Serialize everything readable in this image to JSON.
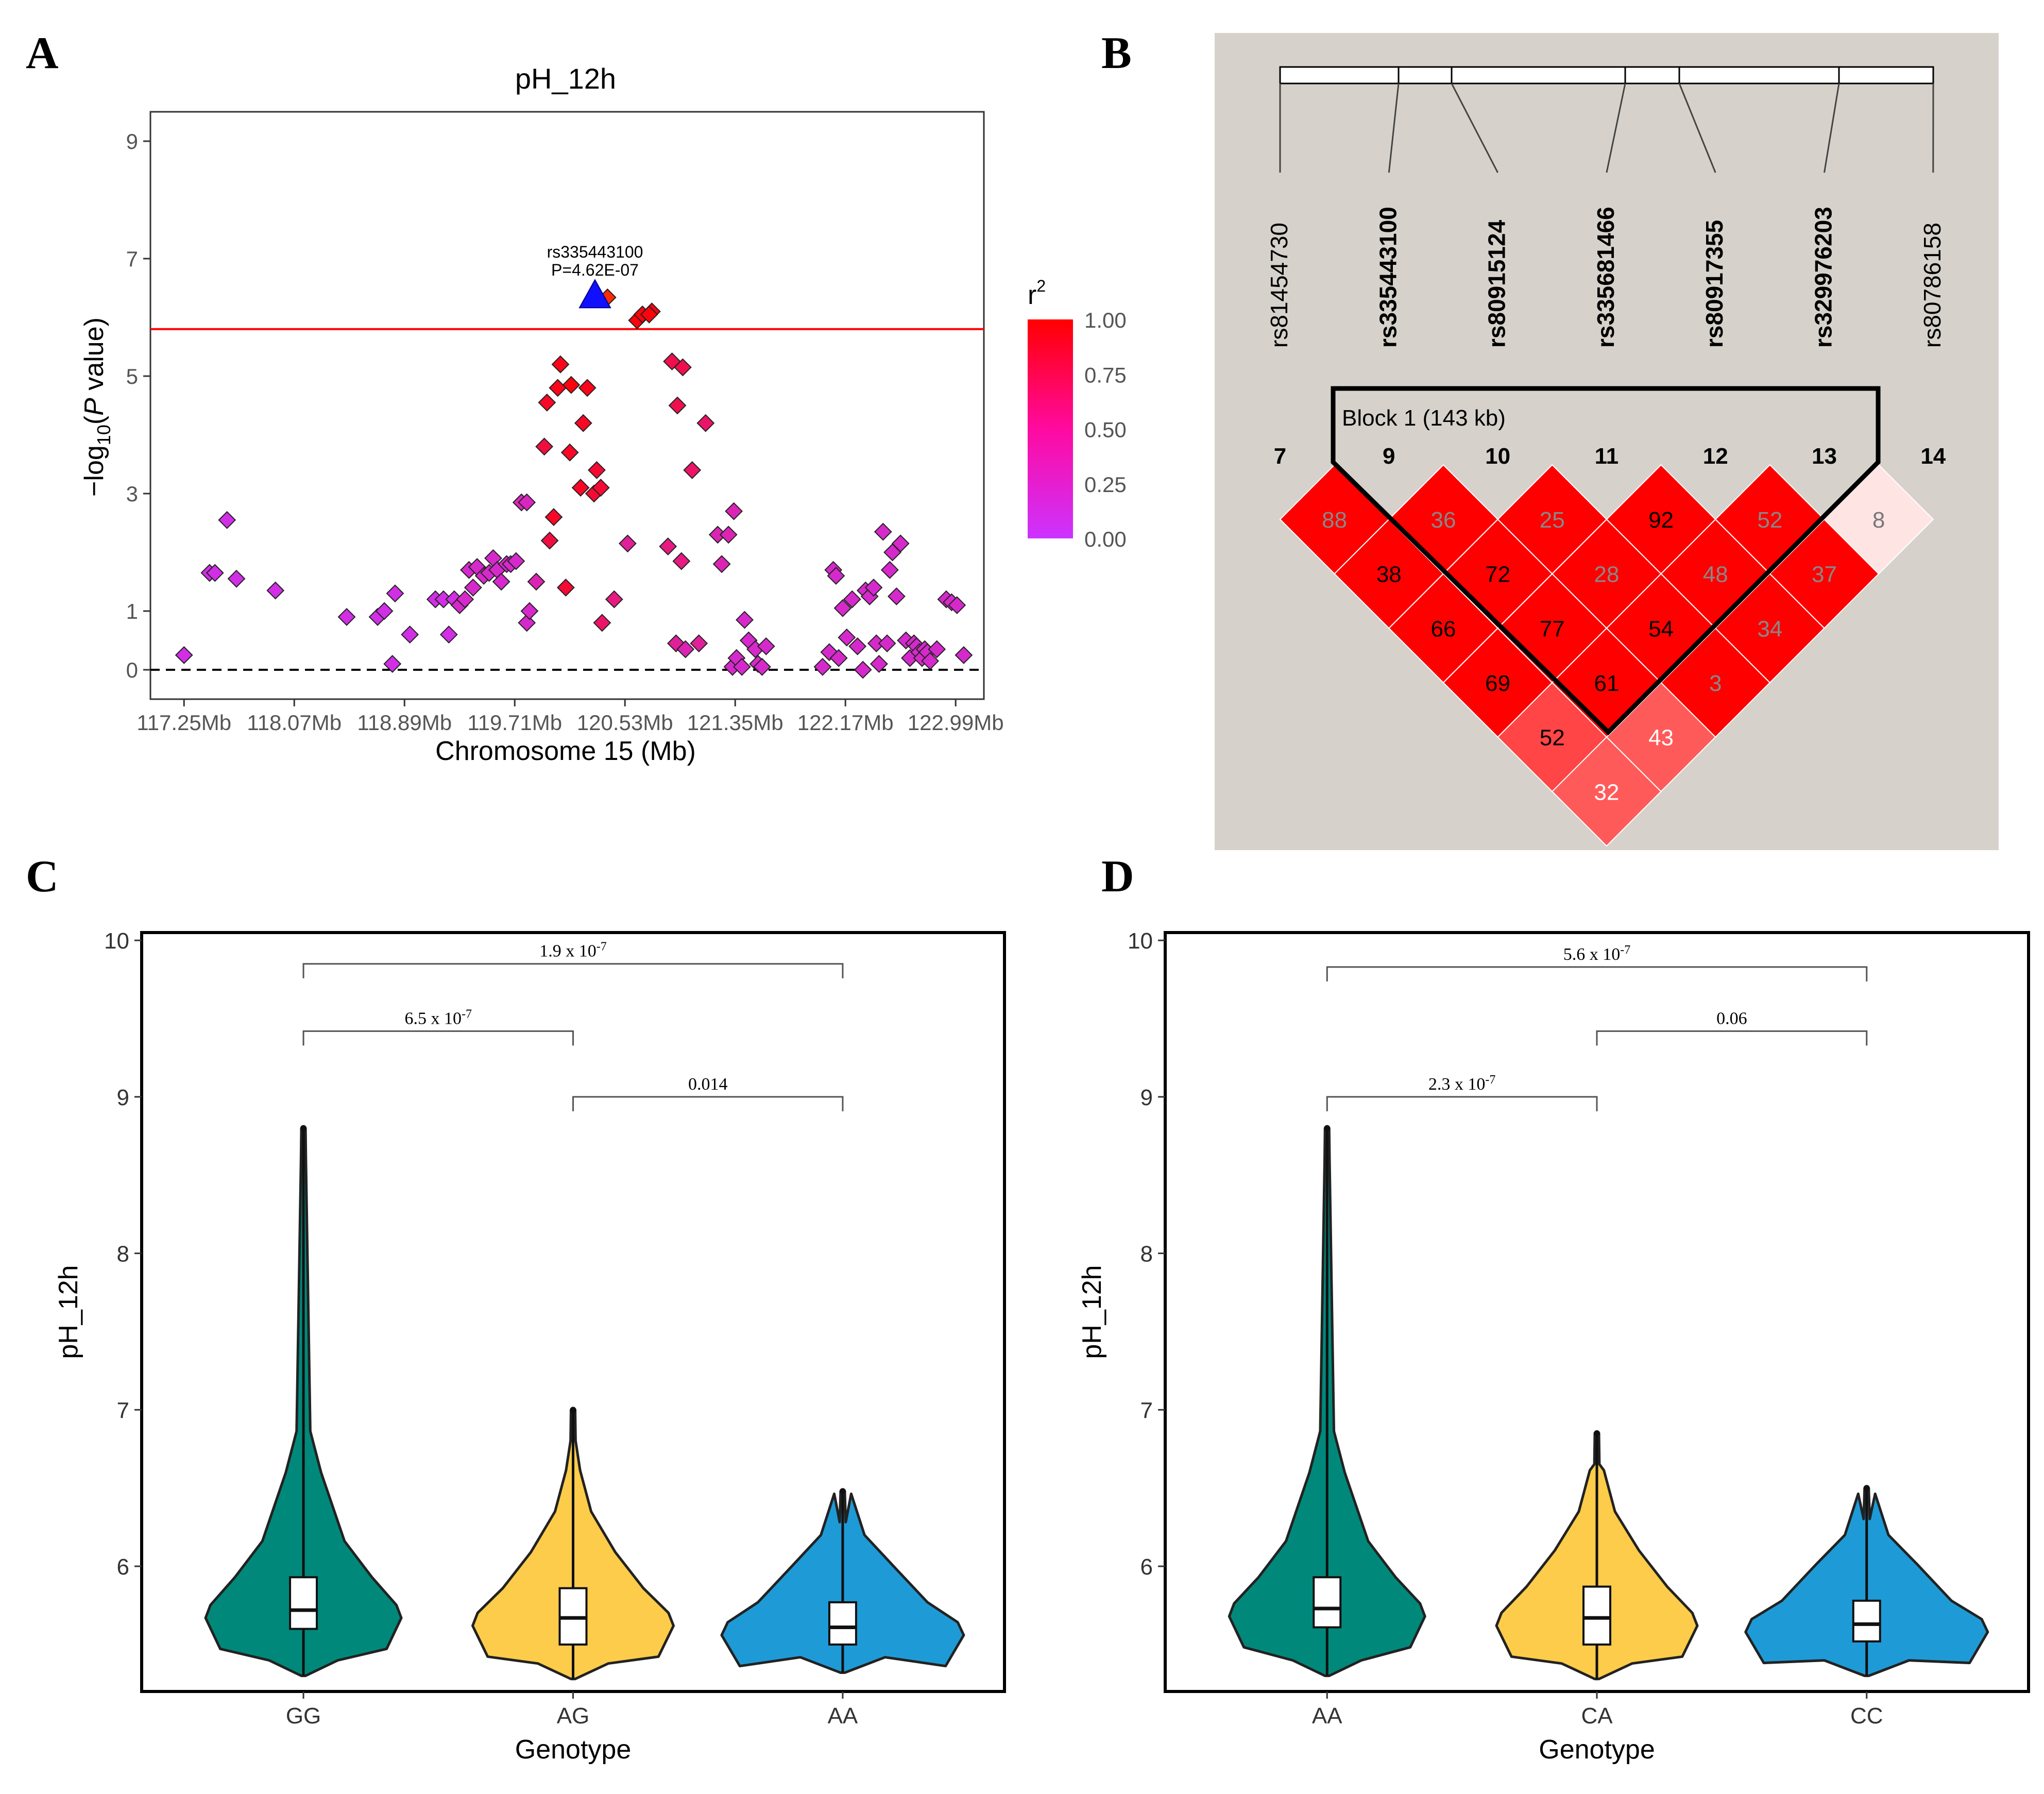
{
  "panels": {
    "a": "A",
    "b": "B",
    "c": "C",
    "d": "D"
  },
  "chart_data": [
    {
      "id": "A",
      "type": "scatter",
      "title": "pH_12h",
      "xlabel": "Chromosome 15 (Mb)",
      "ylabel": "-log10(P value)",
      "ylabel_main": "−log",
      "ylabel_sub": "10",
      "ylabel_open": "(",
      "ylabel_p": "P",
      "ylabel_close": " value)",
      "xlim": [
        117.0,
        123.2
      ],
      "ylim": [
        -0.5,
        9.5
      ],
      "xticks": [
        117.25,
        118.07,
        118.89,
        119.71,
        120.53,
        121.35,
        122.17,
        122.99
      ],
      "xtick_labels": [
        "117.25Mb",
        "118.07Mb",
        "118.89Mb",
        "119.71Mb",
        "120.53Mb",
        "121.35Mb",
        "122.17Mb",
        "122.99Mb"
      ],
      "yticks": [
        0,
        1,
        3,
        5,
        7,
        9
      ],
      "ytick_labels": [
        "0",
        "1",
        "3",
        "5",
        "7",
        "9"
      ],
      "threshold": 5.8,
      "baseline": 0,
      "lead_snp": {
        "x": 120.4,
        "y": 6.34,
        "r2": 1.0,
        "label": "rs335443100",
        "p_label": "P=4.62E-07"
      },
      "legend": {
        "title": "r",
        "title_sup": "2",
        "labels": [
          "1.00",
          "0.75",
          "0.50",
          "0.25",
          "0.00"
        ],
        "low_color": "#cc33ff",
        "high_color": "#ff0000"
      },
      "points": [
        [
          117.25,
          0.25,
          0.1
        ],
        [
          117.44,
          1.65,
          0.1
        ],
        [
          117.48,
          1.65,
          0.1
        ],
        [
          117.57,
          2.55,
          0.1
        ],
        [
          117.64,
          1.55,
          0.1
        ],
        [
          117.93,
          1.35,
          0.1
        ],
        [
          118.46,
          0.9,
          0.1
        ],
        [
          118.69,
          0.9,
          0.1
        ],
        [
          118.74,
          1.0,
          0.1
        ],
        [
          118.8,
          0.1,
          0.1
        ],
        [
          118.82,
          1.3,
          0.1
        ],
        [
          118.93,
          0.6,
          0.1
        ],
        [
          119.12,
          1.2,
          0.1
        ],
        [
          119.18,
          1.2,
          0.1
        ],
        [
          119.22,
          0.6,
          0.1
        ],
        [
          119.26,
          1.2,
          0.1
        ],
        [
          119.3,
          1.1,
          0.2
        ],
        [
          119.34,
          1.2,
          0.2
        ],
        [
          119.37,
          1.7,
          0.2
        ],
        [
          119.4,
          1.4,
          0.2
        ],
        [
          119.43,
          1.75,
          0.2
        ],
        [
          119.48,
          1.6,
          0.2
        ],
        [
          119.52,
          1.65,
          0.2
        ],
        [
          119.55,
          1.9,
          0.2
        ],
        [
          119.58,
          1.7,
          0.2
        ],
        [
          119.61,
          1.5,
          0.2
        ],
        [
          119.65,
          1.8,
          0.2
        ],
        [
          119.68,
          1.8,
          0.2
        ],
        [
          119.72,
          1.85,
          0.2
        ],
        [
          119.76,
          2.85,
          0.25
        ],
        [
          119.8,
          2.85,
          0.25
        ],
        [
          119.8,
          0.8,
          0.2
        ],
        [
          119.82,
          1.0,
          0.2
        ],
        [
          119.87,
          1.5,
          0.3
        ],
        [
          119.93,
          3.8,
          0.75
        ],
        [
          119.95,
          4.55,
          0.85
        ],
        [
          119.97,
          2.2,
          0.75
        ],
        [
          120.0,
          2.6,
          0.85
        ],
        [
          120.03,
          4.8,
          0.9
        ],
        [
          120.05,
          5.2,
          0.9
        ],
        [
          120.09,
          1.4,
          0.8
        ],
        [
          120.12,
          3.7,
          0.85
        ],
        [
          120.13,
          4.85,
          0.95
        ],
        [
          120.2,
          3.1,
          0.85
        ],
        [
          120.22,
          4.2,
          0.85
        ],
        [
          120.25,
          4.8,
          0.9
        ],
        [
          120.3,
          3.0,
          0.8
        ],
        [
          120.32,
          3.4,
          0.8
        ],
        [
          120.35,
          3.1,
          0.8
        ],
        [
          120.36,
          0.8,
          0.6
        ],
        [
          120.45,
          1.2,
          0.5
        ],
        [
          120.55,
          2.15,
          0.4
        ],
        [
          120.62,
          5.95,
          0.95
        ],
        [
          120.66,
          6.05,
          0.95
        ],
        [
          120.73,
          6.1,
          0.95
        ],
        [
          120.71,
          6.05,
          0.95
        ],
        [
          120.85,
          2.1,
          0.5
        ],
        [
          120.88,
          5.25,
          0.7
        ],
        [
          120.91,
          0.45,
          0.4
        ],
        [
          120.92,
          4.5,
          0.7
        ],
        [
          120.95,
          1.85,
          0.5
        ],
        [
          120.96,
          5.15,
          0.7
        ],
        [
          120.98,
          0.35,
          0.3
        ],
        [
          121.03,
          3.4,
          0.6
        ],
        [
          121.08,
          0.45,
          0.4
        ],
        [
          121.13,
          4.2,
          0.6
        ],
        [
          121.22,
          2.3,
          0.3
        ],
        [
          121.25,
          1.8,
          0.3
        ],
        [
          121.3,
          2.3,
          0.3
        ],
        [
          121.33,
          0.05,
          0.2
        ],
        [
          121.34,
          2.7,
          0.3
        ],
        [
          121.36,
          0.2,
          0.2
        ],
        [
          121.4,
          0.05,
          0.2
        ],
        [
          121.42,
          0.85,
          0.2
        ],
        [
          121.45,
          0.5,
          0.2
        ],
        [
          121.5,
          0.35,
          0.2
        ],
        [
          121.52,
          0.1,
          0.2
        ],
        [
          121.55,
          0.05,
          0.2
        ],
        [
          121.58,
          0.4,
          0.2
        ],
        [
          122.0,
          0.05,
          0.2
        ],
        [
          122.05,
          0.3,
          0.2
        ],
        [
          122.08,
          1.7,
          0.2
        ],
        [
          122.1,
          1.6,
          0.2
        ],
        [
          122.12,
          0.2,
          0.2
        ],
        [
          122.15,
          1.05,
          0.2
        ],
        [
          122.18,
          0.55,
          0.2
        ],
        [
          122.22,
          1.2,
          0.2
        ],
        [
          122.26,
          0.4,
          0.2
        ],
        [
          122.3,
          0.0,
          0.2
        ],
        [
          122.32,
          1.35,
          0.2
        ],
        [
          122.35,
          1.25,
          0.2
        ],
        [
          122.38,
          1.4,
          0.2
        ],
        [
          122.4,
          0.45,
          0.2
        ],
        [
          122.42,
          0.1,
          0.2
        ],
        [
          122.45,
          2.35,
          0.2
        ],
        [
          122.48,
          0.45,
          0.2
        ],
        [
          122.5,
          1.7,
          0.2
        ],
        [
          122.52,
          2.0,
          0.2
        ],
        [
          122.55,
          1.25,
          0.2
        ],
        [
          122.58,
          2.15,
          0.2
        ],
        [
          122.62,
          0.5,
          0.2
        ],
        [
          122.65,
          0.2,
          0.2
        ],
        [
          122.68,
          0.45,
          0.2
        ],
        [
          122.7,
          0.4,
          0.2
        ],
        [
          122.72,
          0.3,
          0.2
        ],
        [
          122.74,
          0.2,
          0.2
        ],
        [
          122.76,
          0.35,
          0.2
        ],
        [
          122.78,
          0.3,
          0.2
        ],
        [
          122.8,
          0.15,
          0.2
        ],
        [
          122.85,
          0.35,
          0.2
        ],
        [
          122.92,
          1.2,
          0.2
        ],
        [
          122.96,
          1.15,
          0.2
        ],
        [
          123.0,
          1.1,
          0.2
        ],
        [
          123.05,
          0.25,
          0.2
        ]
      ]
    },
    {
      "id": "B",
      "type": "heatmap",
      "snps": [
        "rs81454730",
        "rs335443100",
        "rs80915124",
        "rs335681466",
        "rs80917355",
        "rs329976203",
        "rs80786158"
      ],
      "bold": [
        false,
        true,
        true,
        true,
        true,
        true,
        false
      ],
      "marker_numbers": [
        "7",
        "9",
        "10",
        "11",
        "12",
        "13",
        "14"
      ],
      "block_label": "Block 1 (143 kb)",
      "matrix": [
        [
          null,
          88,
          38,
          66,
          69,
          52,
          32
        ],
        [
          88,
          null,
          36,
          72,
          77,
          61,
          43
        ],
        [
          38,
          36,
          null,
          25,
          28,
          54,
          3
        ],
        [
          66,
          72,
          25,
          null,
          92,
          48,
          34
        ],
        [
          69,
          77,
          28,
          92,
          null,
          52,
          37
        ],
        [
          52,
          61,
          54,
          48,
          52,
          null,
          8
        ],
        [
          32,
          43,
          3,
          34,
          37,
          8,
          null
        ]
      ]
    },
    {
      "id": "C",
      "type": "violin",
      "ylabel": "pH_12h",
      "xlabel": "Genotype",
      "categories": [
        "GG",
        "AG",
        "AA"
      ],
      "colors": [
        "#00897b",
        "#fdcc4a",
        "#1e9bd7"
      ],
      "ylim": [
        5.2,
        10.05
      ],
      "yticks": [
        6,
        7,
        8,
        9,
        10
      ],
      "ytick_labels": [
        "6",
        "7",
        "8",
        "9",
        "10"
      ],
      "box": [
        {
          "q1": 5.6,
          "median": 5.72,
          "q3": 5.93,
          "min": 5.3,
          "whisker_hi": 6.6,
          "max": 8.8
        },
        {
          "q1": 5.5,
          "median": 5.67,
          "q3": 5.86,
          "min": 5.28,
          "whisker_hi": 6.35,
          "max": 7.0
        },
        {
          "q1": 5.5,
          "median": 5.61,
          "q3": 5.77,
          "min": 5.32,
          "whisker_hi": 6.2,
          "max": 6.48
        }
      ],
      "comparisons": [
        {
          "from": 0,
          "to": 2,
          "y": 9.85,
          "label_base": "1.9 x 10",
          "label_exp": "-7"
        },
        {
          "from": 0,
          "to": 1,
          "y": 9.42,
          "label_base": "6.5 x 10",
          "label_exp": "-7"
        },
        {
          "from": 1,
          "to": 2,
          "y": 9.0,
          "label_base": "0.014",
          "label_exp": ""
        }
      ]
    },
    {
      "id": "D",
      "type": "violin",
      "ylabel": "pH_12h",
      "xlabel": "Genotype",
      "categories": [
        "AA",
        "CA",
        "CC"
      ],
      "colors": [
        "#00897b",
        "#fdcc4a",
        "#1e9bd7"
      ],
      "ylim": [
        5.2,
        10.05
      ],
      "yticks": [
        6,
        7,
        8,
        9,
        10
      ],
      "ytick_labels": [
        "6",
        "7",
        "8",
        "9",
        "10"
      ],
      "box": [
        {
          "q1": 5.61,
          "median": 5.73,
          "q3": 5.93,
          "min": 5.3,
          "whisker_hi": 6.6,
          "max": 8.8
        },
        {
          "q1": 5.5,
          "median": 5.67,
          "q3": 5.87,
          "min": 5.28,
          "whisker_hi": 6.35,
          "max": 6.85
        },
        {
          "q1": 5.52,
          "median": 5.63,
          "q3": 5.78,
          "min": 5.3,
          "whisker_hi": 6.2,
          "max": 6.5
        }
      ],
      "comparisons": [
        {
          "from": 0,
          "to": 2,
          "y": 9.83,
          "label_base": "5.6 x 10",
          "label_exp": "-7"
        },
        {
          "from": 1,
          "to": 2,
          "y": 9.42,
          "label_base": "0.06",
          "label_exp": ""
        },
        {
          "from": 0,
          "to": 1,
          "y": 9.0,
          "label_base": "2.3 x 10",
          "label_exp": "-7"
        }
      ]
    }
  ]
}
